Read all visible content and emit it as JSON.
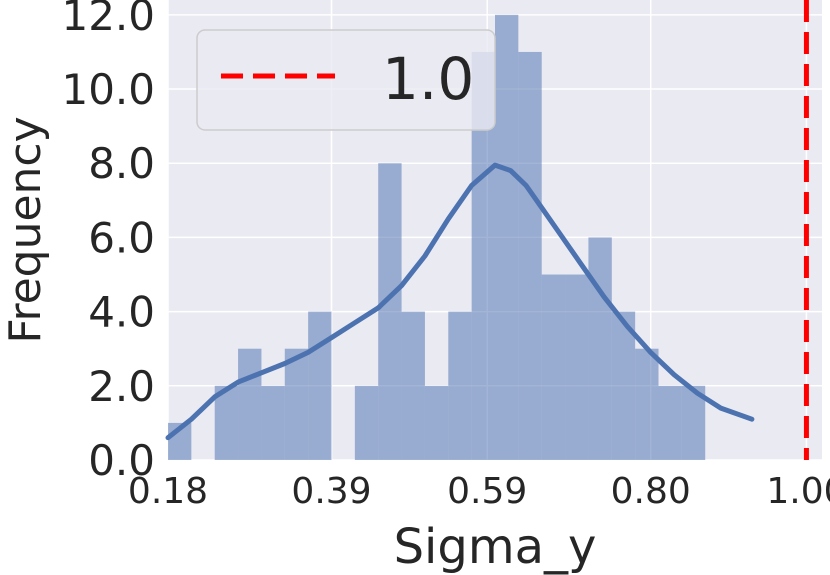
{
  "chart_data": {
    "type": "bar",
    "title": "",
    "xlabel": "Sigma_y",
    "ylabel": "Frequency",
    "xlim": [
      0.18,
      1.02
    ],
    "ylim": [
      0,
      12.4
    ],
    "x_ticks": [
      0.18,
      0.39,
      0.59,
      0.8,
      1.0
    ],
    "x_tick_labels": [
      "0.18",
      "0.39",
      "0.59",
      "0.80",
      "1.00"
    ],
    "y_ticks": [
      0,
      2,
      4,
      6,
      8,
      10,
      12
    ],
    "y_tick_labels": [
      "0.0",
      "2.0",
      "4.0",
      "6.0",
      "8.0",
      "10.0",
      "12.0"
    ],
    "grid": true,
    "legend_position": "upper-left",
    "histogram": {
      "bin_edges": [
        0.18,
        0.21,
        0.24,
        0.27,
        0.3,
        0.33,
        0.36,
        0.39,
        0.42,
        0.45,
        0.48,
        0.51,
        0.54,
        0.57,
        0.6,
        0.63,
        0.66,
        0.69,
        0.72,
        0.75,
        0.78,
        0.81,
        0.84,
        0.87,
        0.9,
        0.93
      ],
      "counts": [
        1,
        0,
        2,
        3,
        2,
        3,
        4,
        0,
        2,
        8,
        4,
        2,
        4,
        11,
        12,
        11,
        5,
        5,
        6,
        4,
        3,
        2,
        2,
        0,
        0
      ],
      "color": "#4c72b0",
      "alpha": 0.5
    },
    "kde": {
      "x": [
        0.18,
        0.21,
        0.24,
        0.27,
        0.3,
        0.33,
        0.36,
        0.39,
        0.42,
        0.45,
        0.48,
        0.51,
        0.54,
        0.57,
        0.6,
        0.62,
        0.64,
        0.66,
        0.68,
        0.71,
        0.74,
        0.77,
        0.8,
        0.83,
        0.86,
        0.89,
        0.93
      ],
      "y": [
        0.6,
        1.1,
        1.7,
        2.1,
        2.35,
        2.6,
        2.9,
        3.3,
        3.7,
        4.1,
        4.7,
        5.5,
        6.5,
        7.4,
        7.95,
        7.8,
        7.4,
        6.8,
        6.2,
        5.3,
        4.4,
        3.6,
        2.9,
        2.3,
        1.8,
        1.4,
        1.1
      ],
      "color": "#4c72b0"
    },
    "series": [
      {
        "name": "1.0",
        "type": "vline",
        "x": 1.0,
        "color": "#ff0000",
        "style": "dashed"
      }
    ]
  },
  "colors": {
    "plot_background": "#eaeaf2",
    "grid": "#ffffff",
    "text": "#262626"
  }
}
